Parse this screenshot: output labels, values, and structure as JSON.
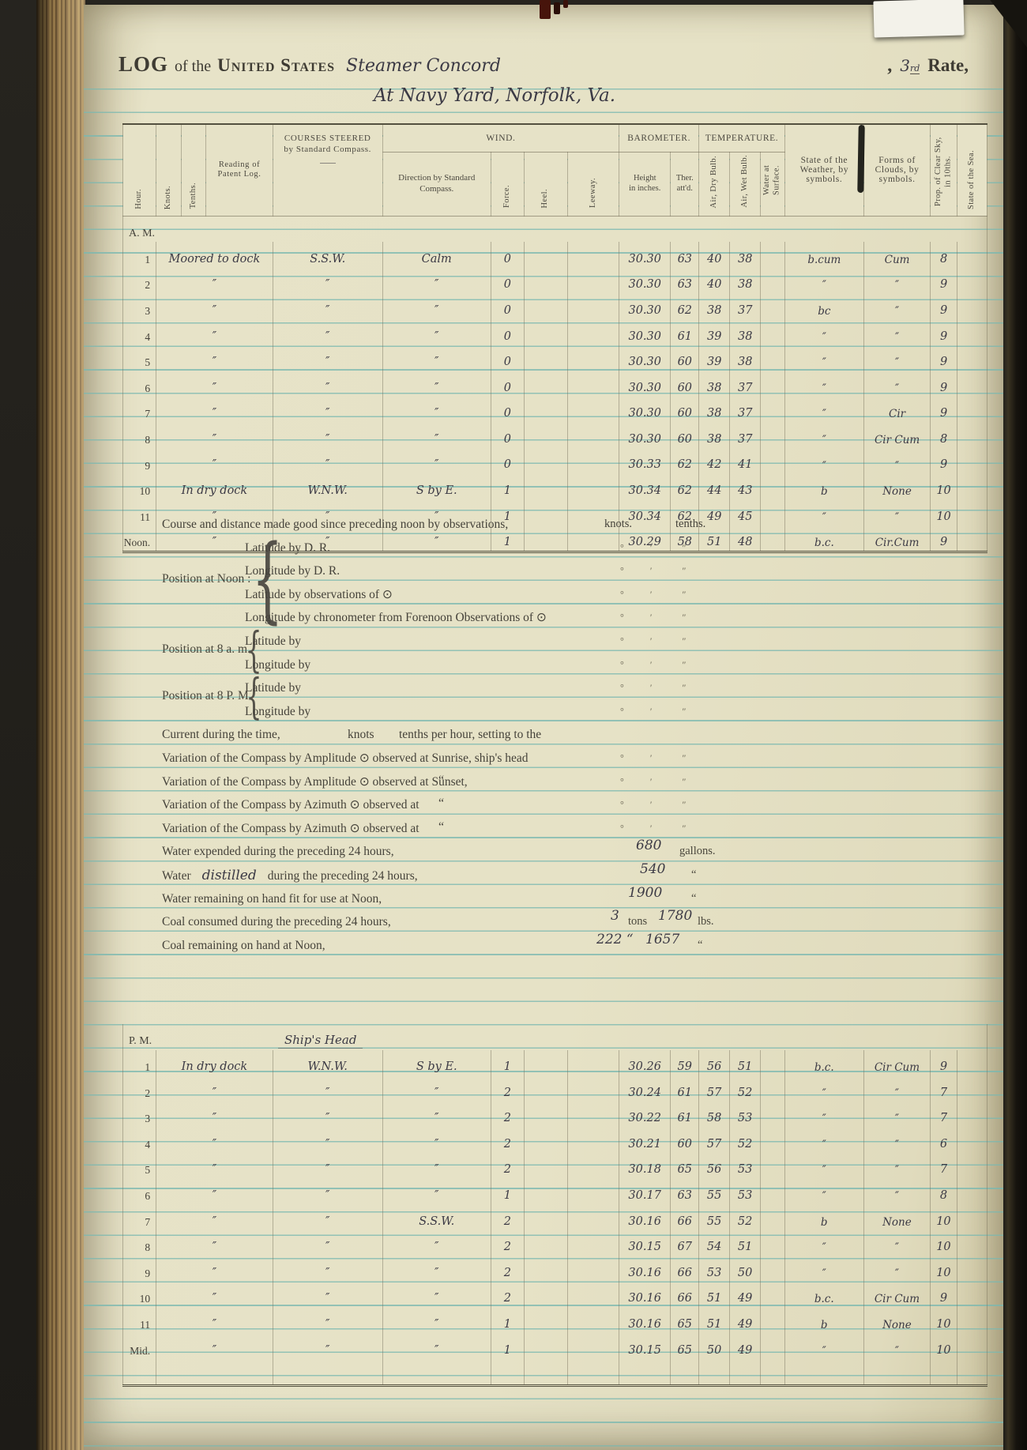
{
  "header": {
    "log_word": "LOG",
    "of_the": "of the",
    "united_states": "United States",
    "vessel": "Steamer Concord",
    "comma": ",",
    "rate_num": "3",
    "rate_ord": "rd",
    "rate_word": "Rate,",
    "location": "At Navy Yard, Norfolk, Va."
  },
  "log_table": {
    "col_headers": {
      "hour": "Hour.",
      "knots": "Knots.",
      "tenths": "Tenths.",
      "patent": "Reading of Patent Log.",
      "courses_1": "COURSES STEERED",
      "courses_2": "by Standard Compass.",
      "ships_head": "Ship's Head",
      "wind": "WIND.",
      "direction": "Direction by Standard Compass.",
      "force": "Force.",
      "heel": "Heel.",
      "leeway": "Leeway.",
      "barometer": "BAROMETER.",
      "height_1": "Height",
      "height_2": "in inches.",
      "ther_1": "Ther.",
      "ther_2": "att'd.",
      "temperature": "TEMPERATURE.",
      "air_dry": "Air, Dry Bulb.",
      "air_wet": "Air, Wet Bulb.",
      "water_surface": "Water at Surface.",
      "weather": "State of the Weather, by symbols.",
      "clouds": "Forms of Clouds, by symbols.",
      "clear_sky": "Prop. of Clear Sky, in 10ths.",
      "sea": "State of the Sea."
    },
    "am_label": "A. M.",
    "pm_label": "P. M.",
    "ships_head_pm": "Ship's Head",
    "am_rows": [
      {
        "hour": "1",
        "entry": "Moored to dock",
        "course": "S.S.W.",
        "direction": "Calm",
        "force": "0",
        "height": "30.30",
        "ther": "63",
        "dry": "40",
        "wet": "38",
        "weather": "b.cum",
        "clouds": "Cum",
        "sky": "8"
      },
      {
        "hour": "2",
        "entry": "″",
        "course": "″",
        "direction": "″",
        "force": "0",
        "height": "30.30",
        "ther": "63",
        "dry": "40",
        "wet": "38",
        "weather": "″",
        "clouds": "″",
        "sky": "9"
      },
      {
        "hour": "3",
        "entry": "″",
        "course": "″",
        "direction": "″",
        "force": "0",
        "height": "30.30",
        "ther": "62",
        "dry": "38",
        "wet": "37",
        "weather": "bc",
        "clouds": "″",
        "sky": "9"
      },
      {
        "hour": "4",
        "entry": "″",
        "course": "″",
        "direction": "″",
        "force": "0",
        "height": "30.30",
        "ther": "61",
        "dry": "39",
        "wet": "38",
        "weather": "″",
        "clouds": "″",
        "sky": "9"
      },
      {
        "hour": "5",
        "entry": "″",
        "course": "″",
        "direction": "″",
        "force": "0",
        "height": "30.30",
        "ther": "60",
        "dry": "39",
        "wet": "38",
        "weather": "″",
        "clouds": "″",
        "sky": "9"
      },
      {
        "hour": "6",
        "entry": "″",
        "course": "″",
        "direction": "″",
        "force": "0",
        "height": "30.30",
        "ther": "60",
        "dry": "38",
        "wet": "37",
        "weather": "″",
        "clouds": "″",
        "sky": "9"
      },
      {
        "hour": "7",
        "entry": "″",
        "course": "″",
        "direction": "″",
        "force": "0",
        "height": "30.30",
        "ther": "60",
        "dry": "38",
        "wet": "37",
        "weather": "″",
        "clouds": "Cir",
        "sky": "9"
      },
      {
        "hour": "8",
        "entry": "″",
        "course": "″",
        "direction": "″",
        "force": "0",
        "height": "30.30",
        "ther": "60",
        "dry": "38",
        "wet": "37",
        "weather": "″",
        "clouds": "Cir Cum",
        "sky": "8"
      },
      {
        "hour": "9",
        "entry": "″",
        "course": "″",
        "direction": "″",
        "force": "0",
        "height": "30.33",
        "ther": "62",
        "dry": "42",
        "wet": "41",
        "weather": "″",
        "clouds": "″",
        "sky": "9"
      },
      {
        "hour": "10",
        "entry": "In dry dock",
        "course": "W.N.W.",
        "direction": "S by E.",
        "force": "1",
        "height": "30.34",
        "ther": "62",
        "dry": "44",
        "wet": "43",
        "weather": "b",
        "clouds": "None",
        "sky": "10"
      },
      {
        "hour": "11",
        "entry": "″",
        "course": "″",
        "direction": "″",
        "force": "1",
        "height": "30.34",
        "ther": "62",
        "dry": "49",
        "wet": "45",
        "weather": "″",
        "clouds": "″",
        "sky": "10"
      },
      {
        "hour": "Noon.",
        "entry": "″",
        "course": "″",
        "direction": "″",
        "force": "1",
        "height": "30.29",
        "ther": "58",
        "dry": "51",
        "wet": "48",
        "weather": "b.c.",
        "clouds": "Cir.Cum",
        "sky": "9"
      }
    ],
    "pm_rows": [
      {
        "hour": "1",
        "entry": "In dry dock",
        "course": "W.N.W.",
        "direction": "S by E.",
        "force": "1",
        "height": "30.26",
        "ther": "59",
        "dry": "56",
        "wet": "51",
        "weather": "b.c.",
        "clouds": "Cir Cum",
        "sky": "9"
      },
      {
        "hour": "2",
        "entry": "″",
        "course": "″",
        "direction": "″",
        "force": "2",
        "height": "30.24",
        "ther": "61",
        "dry": "57",
        "wet": "52",
        "weather": "″",
        "clouds": "″",
        "sky": "7"
      },
      {
        "hour": "3",
        "entry": "″",
        "course": "″",
        "direction": "″",
        "force": "2",
        "height": "30.22",
        "ther": "61",
        "dry": "58",
        "wet": "53",
        "weather": "″",
        "clouds": "″",
        "sky": "7"
      },
      {
        "hour": "4",
        "entry": "″",
        "course": "″",
        "direction": "″",
        "force": "2",
        "height": "30.21",
        "ther": "60",
        "dry": "57",
        "wet": "52",
        "weather": "″",
        "clouds": "″",
        "sky": "6"
      },
      {
        "hour": "5",
        "entry": "″",
        "course": "″",
        "direction": "″",
        "force": "2",
        "height": "30.18",
        "ther": "65",
        "dry": "56",
        "wet": "53",
        "weather": "″",
        "clouds": "″",
        "sky": "7"
      },
      {
        "hour": "6",
        "entry": "″",
        "course": "″",
        "direction": "″",
        "force": "1",
        "height": "30.17",
        "ther": "63",
        "dry": "55",
        "wet": "53",
        "weather": "″",
        "clouds": "″",
        "sky": "8"
      },
      {
        "hour": "7",
        "entry": "″",
        "course": "″",
        "direction": "S.S.W.",
        "force": "2",
        "height": "30.16",
        "ther": "66",
        "dry": "55",
        "wet": "52",
        "weather": "b",
        "clouds": "None",
        "sky": "10"
      },
      {
        "hour": "8",
        "entry": "″",
        "course": "″",
        "direction": "″",
        "force": "2",
        "height": "30.15",
        "ther": "67",
        "dry": "54",
        "wet": "51",
        "weather": "″",
        "clouds": "″",
        "sky": "10"
      },
      {
        "hour": "9",
        "entry": "″",
        "course": "″",
        "direction": "″",
        "force": "2",
        "height": "30.16",
        "ther": "66",
        "dry": "53",
        "wet": "50",
        "weather": "″",
        "clouds": "″",
        "sky": "10"
      },
      {
        "hour": "10",
        "entry": "″",
        "course": "″",
        "direction": "″",
        "force": "2",
        "height": "30.16",
        "ther": "66",
        "dry": "51",
        "wet": "49",
        "weather": "b.c.",
        "clouds": "Cir Cum",
        "sky": "9"
      },
      {
        "hour": "11",
        "entry": "″",
        "course": "″",
        "direction": "″",
        "force": "1",
        "height": "30.16",
        "ther": "65",
        "dry": "51",
        "wet": "49",
        "weather": "b",
        "clouds": "None",
        "sky": "10"
      },
      {
        "hour": "Mid.",
        "entry": "″",
        "course": "″",
        "direction": "″",
        "force": "1",
        "height": "30.15",
        "ther": "65",
        "dry": "50",
        "wet": "49",
        "weather": "″",
        "clouds": "″",
        "sky": "10"
      }
    ]
  },
  "observations": {
    "brace": "{",
    "marks": {
      "deg": "°",
      "min": "′",
      "sec": "″"
    },
    "course_line": {
      "label": "Course and distance made good since preceding noon by observations,",
      "knots": "knots.",
      "tenths": "tenths."
    },
    "position_noon": {
      "label": "Position at Noon :",
      "items": [
        "Latitude by D. R.",
        "Longitude by D. R.",
        "Latitude by observations of ⊙",
        "Longitude by chronometer from Forenoon Observations of ⊙"
      ]
    },
    "position_8am": {
      "label": "Position at 8 a. m.",
      "items": [
        "Latitude by",
        "Longitude by"
      ]
    },
    "position_8pm": {
      "label": "Position at 8 P. M.",
      "items": [
        "Latitude by",
        "Longitude by"
      ]
    },
    "current_line": {
      "label": "Current during the time,",
      "knots": "knots",
      "rest": "tenths per hour, setting to the"
    },
    "variations": [
      {
        "label": "Variation of the Compass by Amplitude ⊙ observed at Sunrise, ship's head",
        "ditto": ""
      },
      {
        "label": "Variation of the Compass by Amplitude ⊙ observed at Sunset,",
        "ditto": "“"
      },
      {
        "label": "Variation of the Compass by Azimuth ⊙ observed at",
        "ditto": "“"
      },
      {
        "label": "Variation of the Compass by Azimuth ⊙ observed at",
        "ditto": "“"
      }
    ],
    "supplies": {
      "water_expended": {
        "label": "Water expended during the preceding 24 hours,",
        "value": "680",
        "unit": "gallons."
      },
      "water_distilled": {
        "label_pre": "Water",
        "hand_word": "distilled",
        "label_post": "during the preceding 24 hours,",
        "value": "540",
        "unit": "“"
      },
      "water_remaining": {
        "label": "Water remaining on hand fit for use at Noon,",
        "value": "1900",
        "unit": "“"
      },
      "coal_consumed": {
        "label": "Coal consumed during the preceding 24 hours,",
        "value1": "3",
        "unit1": "tons",
        "value2": "1780",
        "unit2": "lbs."
      },
      "coal_remaining": {
        "label": "Coal remaining on hand at Noon,",
        "value1": "222 “",
        "value2": "1657",
        "unit2": "“"
      }
    }
  }
}
